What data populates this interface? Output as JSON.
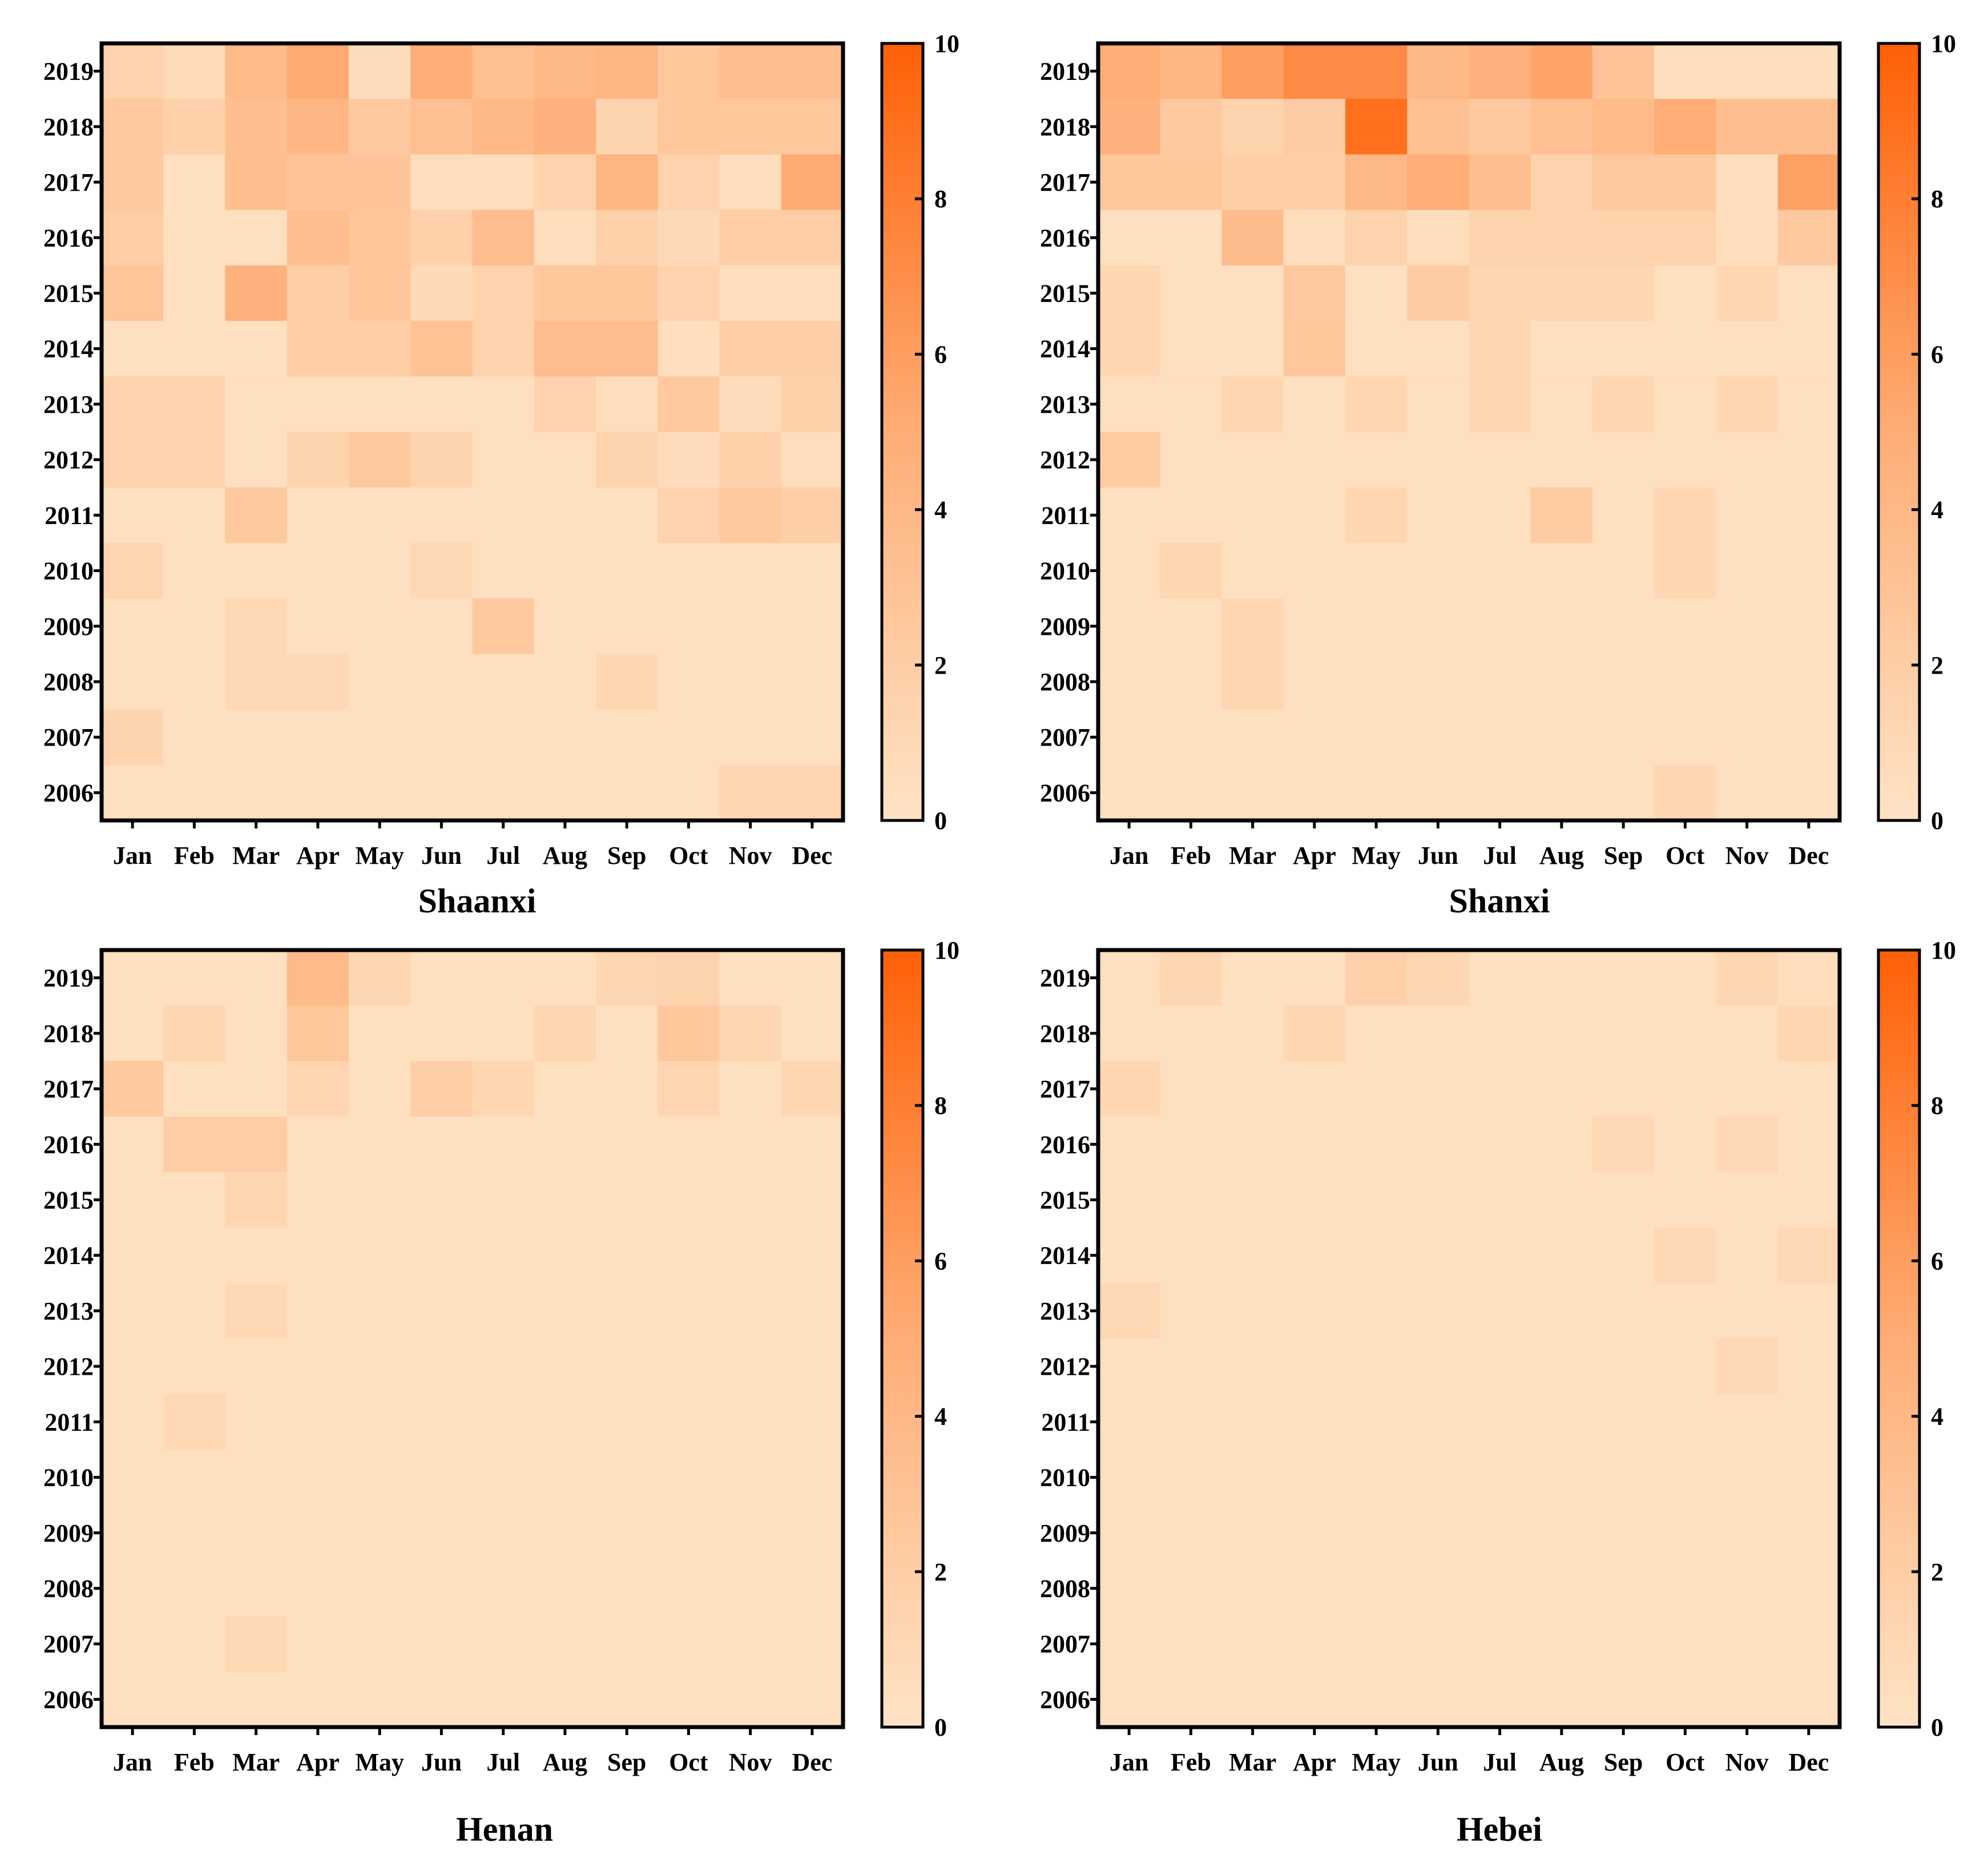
{
  "figure": {
    "colorscale": {
      "low": "#FEE3C5",
      "mid": "#FEAD76",
      "high": "#FF6006"
    }
  },
  "chart_data": [
    {
      "type": "heatmap",
      "title": "Shaanxi",
      "x_categories": [
        "Jan",
        "Feb",
        "Mar",
        "Apr",
        "May",
        "Jun",
        "Jul",
        "Aug",
        "Sep",
        "Oct",
        "Nov",
        "Dec"
      ],
      "y_categories": [
        "2019",
        "2018",
        "2017",
        "2016",
        "2015",
        "2014",
        "2013",
        "2012",
        "2011",
        "2010",
        "2009",
        "2008",
        "2007",
        "2006"
      ],
      "colorbar": {
        "min": 0,
        "max": 10,
        "ticks": [
          0,
          2,
          4,
          6,
          8,
          10
        ]
      },
      "values": [
        [
          1.5,
          0.8,
          3.8,
          5.2,
          0.7,
          5.0,
          3.3,
          4.0,
          4.3,
          2.6,
          3.5,
          3.5
        ],
        [
          2.4,
          1.7,
          3.4,
          4.1,
          2.5,
          3.2,
          4.0,
          4.6,
          1.4,
          2.6,
          2.6,
          2.6
        ],
        [
          2.4,
          0.4,
          3.4,
          2.9,
          2.9,
          0.6,
          0.6,
          1.6,
          4.3,
          1.6,
          0.6,
          5.2
        ],
        [
          2.0,
          0.4,
          0.4,
          3.4,
          2.7,
          1.7,
          3.5,
          0.6,
          1.8,
          0.9,
          2.0,
          2.0
        ],
        [
          2.8,
          0.4,
          4.6,
          1.9,
          2.7,
          0.9,
          1.6,
          2.6,
          2.6,
          1.6,
          0.5,
          0.5
        ],
        [
          0.4,
          0.4,
          0.4,
          1.9,
          1.9,
          3.1,
          1.6,
          3.5,
          3.5,
          0.5,
          1.9,
          1.9
        ],
        [
          1.5,
          1.5,
          0.4,
          0.4,
          0.4,
          0.4,
          0.4,
          1.6,
          0.6,
          2.4,
          0.7,
          1.8
        ],
        [
          1.5,
          1.5,
          0.4,
          1.4,
          2.5,
          1.4,
          0.4,
          0.4,
          1.4,
          0.7,
          1.7,
          0.6
        ],
        [
          0.4,
          0.4,
          2.4,
          0.4,
          0.4,
          0.4,
          0.4,
          0.4,
          0.4,
          1.6,
          2.4,
          1.9
        ],
        [
          1.3,
          0.4,
          0.4,
          0.4,
          0.4,
          1.1,
          0.4,
          0.4,
          0.4,
          0.4,
          0.4,
          0.4
        ],
        [
          0.4,
          0.4,
          1.0,
          0.4,
          0.4,
          0.4,
          2.4,
          0.4,
          0.4,
          0.4,
          0.4,
          0.4
        ],
        [
          0.4,
          0.4,
          1.0,
          1.0,
          0.4,
          0.4,
          0.4,
          0.4,
          1.2,
          0.4,
          0.4,
          0.4
        ],
        [
          1.4,
          0.4,
          0.4,
          0.4,
          0.4,
          0.4,
          0.4,
          0.4,
          0.4,
          0.4,
          0.4,
          0.4
        ],
        [
          0.4,
          0.4,
          0.4,
          0.4,
          0.4,
          0.4,
          0.4,
          0.4,
          0.4,
          0.4,
          1.3,
          1.3
        ]
      ]
    },
    {
      "type": "heatmap",
      "title": "Shanxi",
      "x_categories": [
        "Jan",
        "Feb",
        "Mar",
        "Apr",
        "May",
        "Jun",
        "Jul",
        "Aug",
        "Sep",
        "Oct",
        "Nov",
        "Dec"
      ],
      "y_categories": [
        "2019",
        "2018",
        "2017",
        "2016",
        "2015",
        "2014",
        "2013",
        "2012",
        "2011",
        "2010",
        "2009",
        "2008",
        "2007",
        "2006"
      ],
      "colorbar": {
        "min": 0,
        "max": 10,
        "ticks": [
          0,
          2,
          4,
          6,
          8,
          10
        ]
      },
      "values": [
        [
          5.0,
          4.2,
          6.0,
          7.2,
          7.2,
          4.0,
          4.6,
          5.6,
          3.0,
          0.5,
          0.5,
          0.5
        ],
        [
          4.6,
          2.4,
          1.4,
          2.1,
          9.0,
          3.2,
          2.5,
          3.2,
          3.8,
          5.0,
          3.4,
          3.4
        ],
        [
          2.6,
          2.6,
          1.9,
          1.9,
          4.0,
          5.0,
          3.4,
          1.6,
          2.5,
          2.5,
          0.5,
          5.8
        ],
        [
          0.4,
          0.4,
          3.6,
          0.6,
          1.6,
          0.6,
          1.6,
          1.6,
          1.6,
          1.6,
          0.5,
          2.4
        ],
        [
          1.2,
          0.4,
          0.4,
          2.5,
          0.4,
          2.1,
          1.2,
          1.2,
          1.2,
          0.4,
          1.2,
          0.4
        ],
        [
          1.2,
          0.4,
          0.4,
          2.6,
          0.4,
          0.4,
          1.2,
          0.4,
          0.4,
          0.4,
          0.4,
          0.4
        ],
        [
          0.4,
          0.4,
          1.3,
          0.4,
          1.2,
          0.4,
          1.2,
          0.4,
          1.2,
          0.4,
          1.2,
          0.4
        ],
        [
          2.2,
          0.4,
          0.4,
          0.4,
          0.4,
          0.4,
          0.4,
          0.4,
          0.4,
          0.4,
          0.4,
          0.4
        ],
        [
          0.4,
          0.4,
          0.4,
          0.4,
          1.2,
          0.4,
          0.4,
          2.2,
          0.4,
          1.2,
          0.4,
          0.4
        ],
        [
          0.4,
          1.2,
          0.4,
          0.4,
          0.4,
          0.4,
          0.4,
          0.4,
          0.4,
          1.2,
          0.4,
          0.4
        ],
        [
          0.4,
          0.4,
          1.2,
          0.4,
          0.4,
          0.4,
          0.4,
          0.4,
          0.4,
          0.4,
          0.4,
          0.4
        ],
        [
          0.4,
          0.4,
          1.2,
          0.4,
          0.4,
          0.4,
          0.4,
          0.4,
          0.4,
          0.4,
          0.4,
          0.4
        ],
        [
          0.4,
          0.4,
          0.4,
          0.4,
          0.4,
          0.4,
          0.4,
          0.4,
          0.4,
          0.4,
          0.4,
          0.4
        ],
        [
          0.4,
          0.4,
          0.4,
          0.4,
          0.4,
          0.4,
          0.4,
          0.4,
          0.4,
          1.2,
          0.4,
          0.4
        ]
      ]
    },
    {
      "type": "heatmap",
      "title": "Henan",
      "x_categories": [
        "Jan",
        "Feb",
        "Mar",
        "Apr",
        "May",
        "Jun",
        "Jul",
        "Aug",
        "Sep",
        "Oct",
        "Nov",
        "Dec"
      ],
      "y_categories": [
        "2019",
        "2018",
        "2017",
        "2016",
        "2015",
        "2014",
        "2013",
        "2012",
        "2011",
        "2010",
        "2009",
        "2008",
        "2007",
        "2006"
      ],
      "colorbar": {
        "min": 0,
        "max": 10,
        "ticks": [
          0,
          2,
          4,
          6,
          8,
          10
        ]
      },
      "values": [
        [
          0.4,
          0.4,
          0.4,
          3.8,
          1.2,
          0.4,
          0.4,
          0.4,
          1.2,
          1.4,
          0.4,
          0.4
        ],
        [
          0.4,
          1.2,
          0.4,
          2.6,
          0.4,
          0.4,
          0.4,
          1.2,
          0.4,
          2.6,
          1.2,
          0.4
        ],
        [
          2.4,
          0.4,
          0.4,
          1.3,
          0.4,
          1.9,
          1.2,
          0.4,
          0.4,
          1.3,
          0.4,
          1.2
        ],
        [
          0.4,
          2.0,
          2.0,
          0.4,
          0.4,
          0.4,
          0.4,
          0.4,
          0.4,
          0.4,
          0.4,
          0.4
        ],
        [
          0.4,
          0.4,
          1.2,
          0.4,
          0.4,
          0.4,
          0.4,
          0.4,
          0.4,
          0.4,
          0.4,
          0.4
        ],
        [
          0.4,
          0.4,
          0.4,
          0.4,
          0.4,
          0.4,
          0.4,
          0.4,
          0.4,
          0.4,
          0.4,
          0.4
        ],
        [
          0.4,
          0.4,
          1.0,
          0.4,
          0.4,
          0.4,
          0.4,
          0.4,
          0.4,
          0.4,
          0.4,
          0.4
        ],
        [
          0.4,
          0.4,
          0.4,
          0.4,
          0.4,
          0.4,
          0.4,
          0.4,
          0.4,
          0.4,
          0.4,
          0.4
        ],
        [
          0.4,
          1.0,
          0.4,
          0.4,
          0.4,
          0.4,
          0.4,
          0.4,
          0.4,
          0.4,
          0.4,
          0.4
        ],
        [
          0.4,
          0.4,
          0.4,
          0.4,
          0.4,
          0.4,
          0.4,
          0.4,
          0.4,
          0.4,
          0.4,
          0.4
        ],
        [
          0.4,
          0.4,
          0.4,
          0.4,
          0.4,
          0.4,
          0.4,
          0.4,
          0.4,
          0.4,
          0.4,
          0.4
        ],
        [
          0.4,
          0.4,
          0.4,
          0.4,
          0.4,
          0.4,
          0.4,
          0.4,
          0.4,
          0.4,
          0.4,
          0.4
        ],
        [
          0.4,
          0.4,
          1.0,
          0.4,
          0.4,
          0.4,
          0.4,
          0.4,
          0.4,
          0.4,
          0.4,
          0.4
        ],
        [
          0.4,
          0.4,
          0.4,
          0.4,
          0.4,
          0.4,
          0.4,
          0.4,
          0.4,
          0.4,
          0.4,
          0.4
        ]
      ]
    },
    {
      "type": "heatmap",
      "title": "Hebei",
      "x_categories": [
        "Jan",
        "Feb",
        "Mar",
        "Apr",
        "May",
        "Jun",
        "Jul",
        "Aug",
        "Sep",
        "Oct",
        "Nov",
        "Dec"
      ],
      "y_categories": [
        "2019",
        "2018",
        "2017",
        "2016",
        "2015",
        "2014",
        "2013",
        "2012",
        "2011",
        "2010",
        "2009",
        "2008",
        "2007",
        "2006"
      ],
      "colorbar": {
        "min": 0,
        "max": 10,
        "ticks": [
          0,
          2,
          4,
          6,
          8,
          10
        ]
      },
      "values": [
        [
          0.4,
          1.2,
          0.4,
          0.4,
          1.8,
          1.2,
          0.4,
          0.4,
          0.4,
          0.4,
          1.2,
          0.6
        ],
        [
          0.4,
          0.4,
          0.4,
          1.2,
          0.4,
          0.4,
          0.4,
          0.4,
          0.4,
          0.4,
          0.4,
          1.2
        ],
        [
          1.2,
          0.4,
          0.4,
          0.4,
          0.4,
          0.4,
          0.4,
          0.4,
          0.4,
          0.4,
          0.4,
          0.4
        ],
        [
          0.4,
          0.4,
          0.4,
          0.4,
          0.4,
          0.4,
          0.4,
          0.4,
          1.1,
          0.4,
          1.1,
          0.4
        ],
        [
          0.4,
          0.4,
          0.4,
          0.4,
          0.4,
          0.4,
          0.4,
          0.4,
          0.4,
          0.4,
          0.4,
          0.4
        ],
        [
          0.4,
          0.4,
          0.4,
          0.4,
          0.4,
          0.4,
          0.4,
          0.4,
          0.4,
          1.1,
          0.4,
          1.1
        ],
        [
          1.1,
          0.4,
          0.4,
          0.4,
          0.4,
          0.4,
          0.4,
          0.4,
          0.4,
          0.4,
          0.4,
          0.4
        ],
        [
          0.4,
          0.4,
          0.4,
          0.4,
          0.4,
          0.4,
          0.4,
          0.4,
          0.4,
          0.4,
          1.1,
          0.4
        ],
        [
          0.4,
          0.4,
          0.4,
          0.4,
          0.4,
          0.4,
          0.4,
          0.4,
          0.4,
          0.4,
          0.4,
          0.4
        ],
        [
          0.4,
          0.4,
          0.4,
          0.4,
          0.4,
          0.4,
          0.4,
          0.4,
          0.4,
          0.4,
          0.4,
          0.4
        ],
        [
          0.4,
          0.4,
          0.4,
          0.4,
          0.4,
          0.4,
          0.4,
          0.4,
          0.4,
          0.4,
          0.4,
          0.4
        ],
        [
          0.4,
          0.4,
          0.4,
          0.4,
          0.4,
          0.4,
          0.4,
          0.4,
          0.4,
          0.4,
          0.4,
          0.4
        ],
        [
          0.4,
          0.4,
          0.4,
          0.4,
          0.4,
          0.4,
          0.4,
          0.4,
          0.4,
          0.4,
          0.4,
          0.4
        ],
        [
          0.4,
          0.4,
          0.4,
          0.4,
          0.4,
          0.4,
          0.4,
          0.4,
          0.4,
          0.4,
          0.4,
          0.4
        ]
      ]
    }
  ]
}
